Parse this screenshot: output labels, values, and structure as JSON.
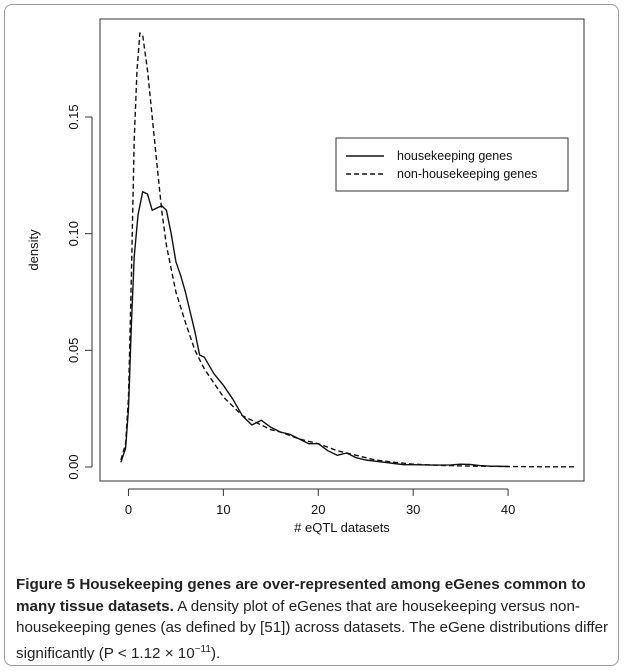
{
  "chart_data": {
    "type": "line",
    "xlabel": "# eQTL datasets",
    "ylabel": "density",
    "xlim": [
      -3,
      48
    ],
    "ylim": [
      -0.006,
      0.192
    ],
    "x_ticks": [
      0,
      10,
      20,
      30,
      40
    ],
    "y_ticks": [
      0.0,
      0.05,
      0.1,
      0.15
    ],
    "y_tick_labels": [
      "0.00",
      "0.05",
      "0.10",
      "0.15"
    ],
    "grid": false,
    "legend_position": "top-right",
    "series": [
      {
        "name": "housekeeping genes",
        "line_style": "solid",
        "x": [
          -0.8,
          -0.3,
          0,
          0.3,
          0.6,
          1,
          1.5,
          2,
          2.5,
          3,
          3.5,
          4,
          4.5,
          5,
          5.5,
          6,
          7,
          7.5,
          8,
          9,
          10,
          11,
          12,
          13,
          14,
          15,
          16,
          17,
          18,
          19,
          20,
          21,
          22,
          23,
          24,
          25,
          26,
          27,
          28,
          29,
          30,
          32,
          34,
          35,
          36,
          37,
          38,
          40
        ],
        "y": [
          0.002,
          0.008,
          0.025,
          0.06,
          0.09,
          0.108,
          0.118,
          0.117,
          0.11,
          0.111,
          0.112,
          0.11,
          0.1,
          0.088,
          0.082,
          0.075,
          0.058,
          0.048,
          0.047,
          0.04,
          0.035,
          0.029,
          0.022,
          0.018,
          0.02,
          0.017,
          0.015,
          0.014,
          0.012,
          0.01,
          0.01,
          0.007,
          0.005,
          0.006,
          0.004,
          0.003,
          0.0025,
          0.002,
          0.0015,
          0.001,
          0.001,
          0.0008,
          0.0009,
          0.0012,
          0.0011,
          0.0006,
          0.0004,
          0.0002
        ]
      },
      {
        "name": "non-housekeeping genes",
        "line_style": "dashed",
        "x": [
          -0.8,
          -0.3,
          0,
          0.3,
          0.6,
          0.9,
          1.2,
          1.5,
          2,
          2.5,
          3,
          3.5,
          4,
          5,
          6,
          7,
          8,
          9,
          10,
          11,
          12,
          13,
          14,
          15,
          16,
          18,
          20,
          22,
          24,
          26,
          28,
          30,
          33,
          36,
          40,
          44,
          47
        ],
        "y": [
          0.003,
          0.01,
          0.03,
          0.08,
          0.14,
          0.17,
          0.186,
          0.185,
          0.17,
          0.15,
          0.13,
          0.11,
          0.095,
          0.075,
          0.062,
          0.05,
          0.042,
          0.036,
          0.03,
          0.026,
          0.022,
          0.02,
          0.018,
          0.016,
          0.015,
          0.012,
          0.01,
          0.007,
          0.005,
          0.003,
          0.002,
          0.0012,
          0.0007,
          0.0004,
          0.0002,
          0.0001,
          0.0001
        ]
      }
    ]
  },
  "caption": {
    "label": "Figure 5",
    "title": "Housekeeping genes are over-represented among eGenes common to many tissue datasets.",
    "body": "A density plot of eGenes that are housekeeping versus non-housekeeping genes (as defined by [51]) across datasets. The eGene distributions differ significantly (P < 1.12 × 10",
    "exponent": "−11",
    "end": ")."
  }
}
